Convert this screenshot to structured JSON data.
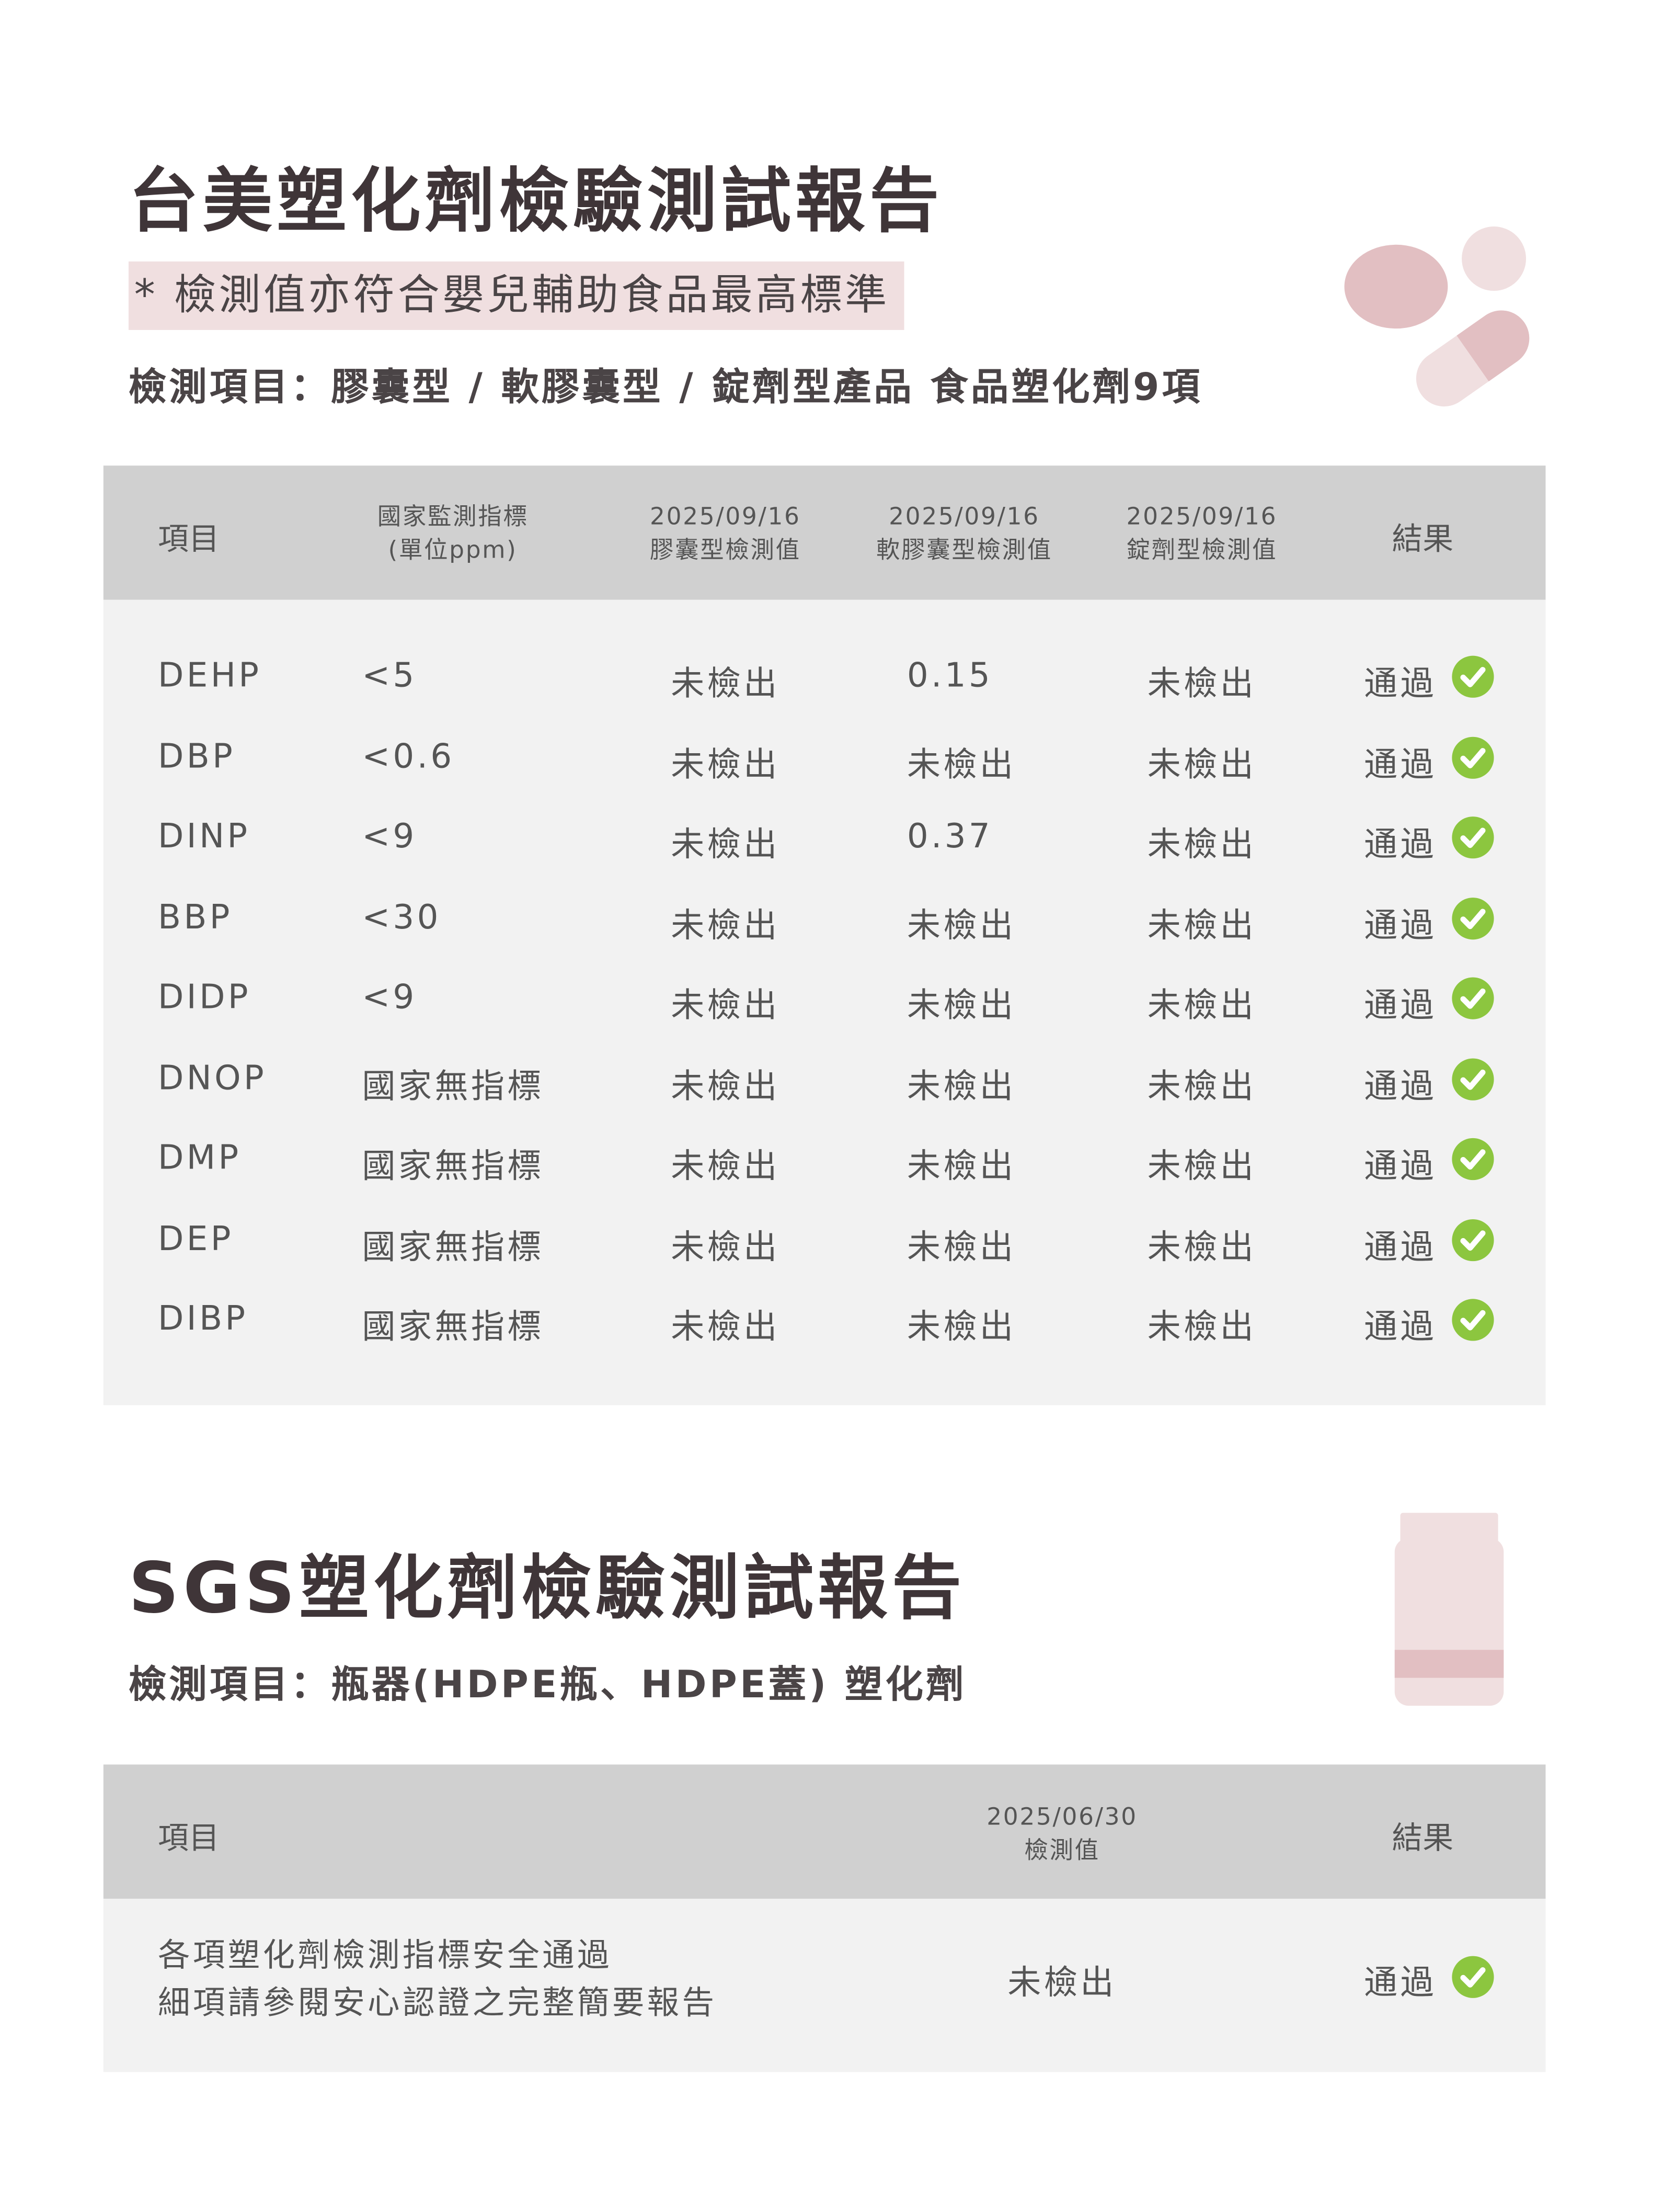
{
  "section1": {
    "title": "台美塑化劑檢驗測試報告",
    "highlight": "* 檢測值亦符合嬰兒輔助食品最高標準",
    "subtitle": "檢測項目：膠囊型 / 軟膠囊型 / 錠劑型產品  食品塑化劑9項",
    "headers": {
      "item": "項目",
      "standard": [
        "國家監測指標",
        "(單位ppm)"
      ],
      "capsule": [
        "2025/09/16",
        "膠囊型檢測值"
      ],
      "softgel": [
        "2025/09/16",
        "軟膠囊型檢測值"
      ],
      "tablet": [
        "2025/09/16",
        "錠劑型檢測值"
      ],
      "result": "結果"
    },
    "rows": [
      {
        "item": "DEHP",
        "standard": "<5",
        "capsule": "未檢出",
        "softgel": "0.15",
        "tablet": "未檢出",
        "result": "通過"
      },
      {
        "item": "DBP",
        "standard": "<0.6",
        "capsule": "未檢出",
        "softgel": "未檢出",
        "tablet": "未檢出",
        "result": "通過"
      },
      {
        "item": "DINP",
        "standard": "<9",
        "capsule": "未檢出",
        "softgel": "0.37",
        "tablet": "未檢出",
        "result": "通過"
      },
      {
        "item": "BBP",
        "standard": "<30",
        "capsule": "未檢出",
        "softgel": "未檢出",
        "tablet": "未檢出",
        "result": "通過"
      },
      {
        "item": "DIDP",
        "standard": "<9",
        "capsule": "未檢出",
        "softgel": "未檢出",
        "tablet": "未檢出",
        "result": "通過"
      },
      {
        "item": "DNOP",
        "standard": "國家無指標",
        "capsule": "未檢出",
        "softgel": "未檢出",
        "tablet": "未檢出",
        "result": "通過"
      },
      {
        "item": "DMP",
        "standard": "國家無指標",
        "capsule": "未檢出",
        "softgel": "未檢出",
        "tablet": "未檢出",
        "result": "通過"
      },
      {
        "item": "DEP",
        "standard": "國家無指標",
        "capsule": "未檢出",
        "softgel": "未檢出",
        "tablet": "未檢出",
        "result": "通過"
      },
      {
        "item": "DIBP",
        "standard": "國家無指標",
        "capsule": "未檢出",
        "softgel": "未檢出",
        "tablet": "未檢出",
        "result": "通過"
      }
    ]
  },
  "section2": {
    "title": "SGS塑化劑檢驗測試報告",
    "subtitle": "檢測項目：瓶器(HDPE瓶、HDPE蓋) 塑化劑",
    "headers": {
      "item": "項目",
      "value": [
        "2025/06/30",
        "檢測值"
      ],
      "result": "結果"
    },
    "row": {
      "item": [
        "各項塑化劑檢測指標安全通過",
        "細項請參閱安心認證之完整簡要報告"
      ],
      "value": "未檢出",
      "result": "通過"
    }
  },
  "colors": {
    "header_bg": "#d0d0d0",
    "body_bg": "#f2f2f2",
    "highlight": "#f0dfe0",
    "check": "#8cc63f",
    "accent_pink": "#e2bfc2"
  },
  "icons": {
    "pass": "check-circle-icon",
    "decor1": "pills-icon",
    "decor2": "bottle-icon"
  }
}
